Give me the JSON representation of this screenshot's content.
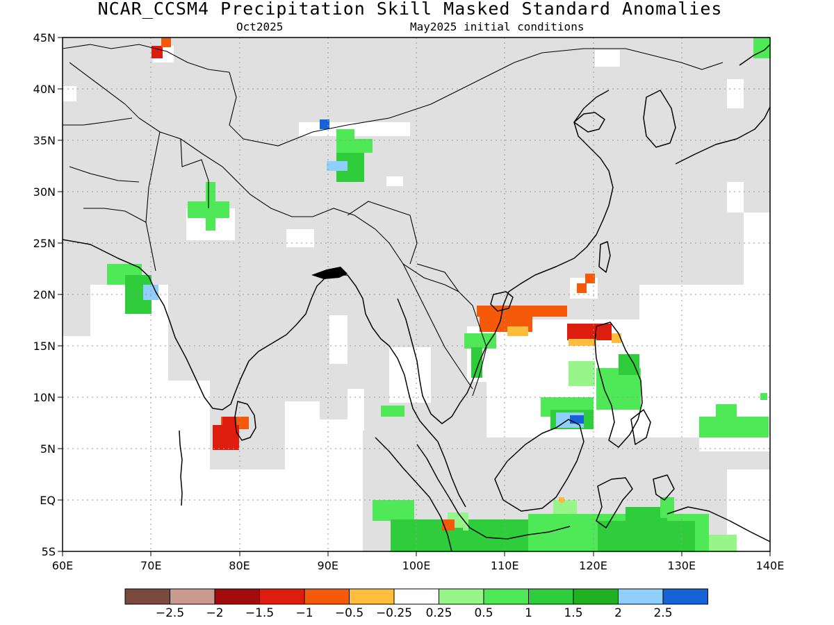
{
  "title": "NCAR_CCSM4 Precipitation Skill Masked Standard Anomalies",
  "subtitle_left": "Oct2025",
  "subtitle_right": "May2025 initial conditions",
  "axes": {
    "x_ticks": [
      "60E",
      "70E",
      "80E",
      "90E",
      "100E",
      "110E",
      "120E",
      "130E",
      "140E"
    ],
    "y_ticks": [
      "45N",
      "40N",
      "35N",
      "30N",
      "25N",
      "20N",
      "15N",
      "10N",
      "5N",
      "EQ",
      "5S"
    ],
    "lon_range": [
      60,
      140
    ],
    "lat_range": [
      -5,
      45
    ]
  },
  "colorbar": {
    "colors": [
      "#7b4a3f",
      "#c89a90",
      "#a10b0b",
      "#dd1d0e",
      "#f45a0a",
      "#ffbd3d",
      "#ffffff",
      "#98f58a",
      "#4fe957",
      "#2fcc3b",
      "#1fb122",
      "#90cffb",
      "#1563d6"
    ],
    "labels": [
      "−2.5",
      "−2",
      "−1.5",
      "−1",
      "−0.5",
      "−0.25",
      "0.25",
      "0.5",
      "1",
      "1.5",
      "2",
      "2.5"
    ]
  },
  "legend_colors": {
    "masked": "#e0e0e0",
    "no_skill": "#ffffff"
  }
}
